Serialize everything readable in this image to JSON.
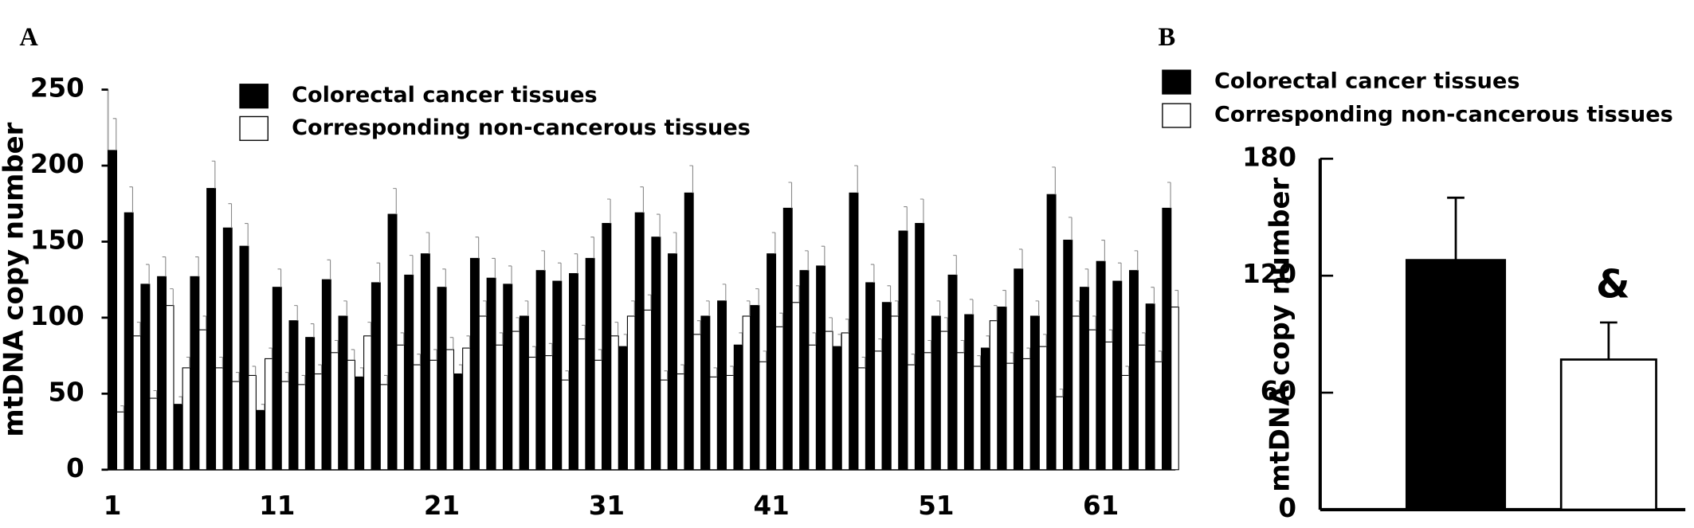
{
  "chart_data": [
    {
      "type": "bar",
      "panel_label": "A",
      "ylabel": "mtDNA copy number",
      "categories": [
        "1",
        null,
        null,
        null,
        null,
        null,
        null,
        null,
        null,
        null,
        "11",
        null,
        null,
        null,
        null,
        null,
        null,
        null,
        null,
        null,
        "21",
        null,
        null,
        null,
        null,
        null,
        null,
        null,
        null,
        null,
        "31",
        null,
        null,
        null,
        null,
        null,
        null,
        null,
        null,
        null,
        "41",
        null,
        null,
        null,
        null,
        null,
        null,
        null,
        null,
        null,
        "51",
        null,
        null,
        null,
        null,
        null,
        null,
        null,
        null,
        null,
        "61",
        null,
        null,
        null,
        null
      ],
      "series": [
        {
          "name": "Colorectal cancer tissues",
          "color": "#000000",
          "values": [
            210,
            169,
            122,
            127,
            43,
            127,
            185,
            159,
            147,
            39,
            120,
            98,
            87,
            125,
            101,
            61,
            123,
            168,
            128,
            142,
            120,
            63,
            139,
            126,
            122,
            101,
            131,
            124,
            129,
            139,
            162,
            81,
            169,
            153,
            142,
            182,
            101,
            111,
            82,
            108,
            142,
            172,
            131,
            134,
            81,
            182,
            123,
            110,
            157,
            162,
            101,
            128,
            102,
            80,
            107,
            132,
            101,
            181,
            151,
            120,
            137,
            124,
            131,
            109,
            172
          ],
          "errors": [
            21,
            17,
            13,
            13,
            5,
            13,
            18,
            16,
            15,
            4,
            12,
            10,
            9,
            13,
            10,
            6,
            13,
            17,
            13,
            14,
            12,
            6,
            14,
            13,
            12,
            10,
            13,
            12,
            13,
            14,
            16,
            8,
            17,
            15,
            14,
            18,
            10,
            11,
            8,
            11,
            14,
            17,
            13,
            13,
            8,
            18,
            12,
            11,
            16,
            16,
            10,
            13,
            10,
            8,
            11,
            13,
            10,
            18,
            15,
            12,
            14,
            12,
            13,
            11,
            17
          ]
        },
        {
          "name": "Corresponding non-cancerous tissues",
          "color": "#ffffff",
          "values": [
            38,
            88,
            47,
            108,
            67,
            92,
            67,
            58,
            62,
            73,
            58,
            56,
            63,
            77,
            72,
            88,
            56,
            82,
            69,
            72,
            79,
            80,
            101,
            82,
            91,
            74,
            75,
            59,
            86,
            72,
            88,
            101,
            105,
            59,
            63,
            89,
            61,
            62,
            101,
            71,
            94,
            110,
            82,
            91,
            90,
            67,
            78,
            101,
            69,
            77,
            91,
            77,
            68,
            98,
            70,
            73,
            81,
            48,
            101,
            92,
            84,
            62,
            82,
            71,
            107
          ],
          "errors": [
            4,
            9,
            5,
            11,
            7,
            9,
            7,
            6,
            6,
            7,
            6,
            6,
            6,
            8,
            7,
            9,
            6,
            8,
            7,
            7,
            8,
            8,
            10,
            8,
            9,
            7,
            8,
            6,
            9,
            7,
            9,
            10,
            10,
            6,
            6,
            9,
            6,
            6,
            10,
            7,
            9,
            11,
            8,
            9,
            9,
            7,
            8,
            10,
            7,
            8,
            9,
            8,
            7,
            10,
            7,
            7,
            8,
            5,
            10,
            9,
            8,
            6,
            8,
            7,
            11
          ]
        }
      ],
      "ylim": [
        0,
        250
      ],
      "yticks": [
        0,
        50,
        100,
        150,
        200,
        250
      ]
    },
    {
      "type": "bar",
      "panel_label": "B",
      "ylabel": "mtDNA copy number",
      "categories": [
        null,
        null
      ],
      "series": [
        {
          "name": "Colorectal cancer tissues",
          "color": "#000000",
          "values": [
            128,
            null
          ],
          "errors": [
            32,
            null
          ]
        },
        {
          "name": "Corresponding non-cancerous tissues",
          "color": "#ffffff",
          "values": [
            null,
            77
          ],
          "errors": [
            null,
            19
          ]
        }
      ],
      "annotation": "&",
      "ylim": [
        0,
        180
      ],
      "yticks": [
        0,
        60,
        120,
        180
      ]
    }
  ]
}
